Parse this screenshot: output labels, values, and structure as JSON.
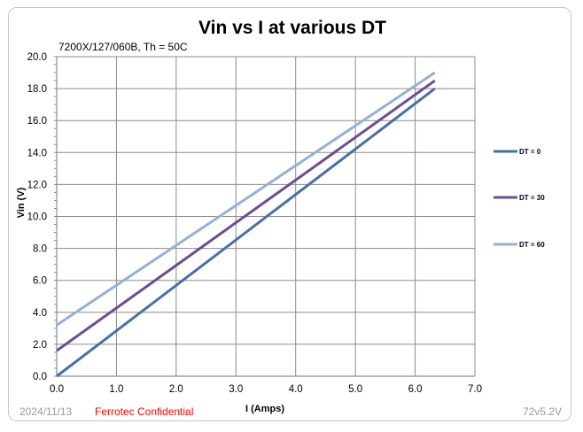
{
  "chart_data": {
    "type": "line",
    "title": "Vin vs I at various DT",
    "subtitle": "7200X/127/060B, Th = 50C",
    "xlabel": "I (Amps)",
    "ylabel": "Vin (V)",
    "xlim": [
      0,
      7
    ],
    "ylim": [
      0,
      20
    ],
    "x_ticks": [
      "0.0",
      "1.0",
      "2.0",
      "3.0",
      "4.0",
      "5.0",
      "6.0",
      "7.0"
    ],
    "y_ticks": [
      "0.0",
      "2.0",
      "4.0",
      "6.0",
      "8.0",
      "10.0",
      "12.0",
      "14.0",
      "16.0",
      "18.0",
      "20.0"
    ],
    "grid": true,
    "legend_position": "right",
    "series": [
      {
        "name": "DT = 0",
        "color": "#4a6fa5",
        "x": [
          0,
          6.33
        ],
        "y": [
          0,
          18.0
        ]
      },
      {
        "name": "DT = 30",
        "color": "#6b4f8e",
        "x": [
          0,
          6.33
        ],
        "y": [
          1.6,
          18.5
        ]
      },
      {
        "name": "DT = 60",
        "color": "#97b0d4",
        "x": [
          0,
          6.33
        ],
        "y": [
          3.2,
          19.0
        ]
      }
    ]
  },
  "footer": {
    "date": "2024/11/13",
    "confidential": "Ferrotec Confidential",
    "version": "72v5.2V"
  }
}
